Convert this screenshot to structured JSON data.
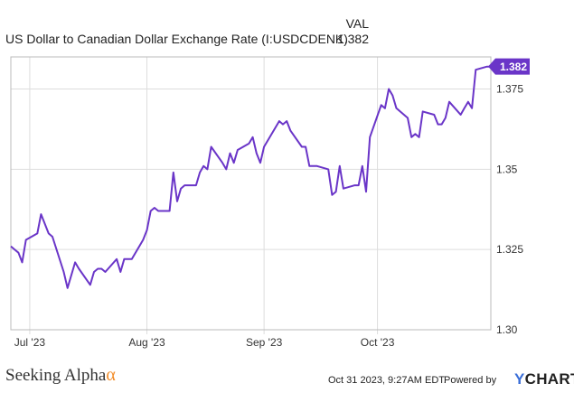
{
  "legend": {
    "header": "VAL",
    "series_name": "US Dollar to Canadian Dollar Exchange Rate (I:USDCDENK)",
    "series_value": "1.382"
  },
  "colors": {
    "series": "#6a35c8",
    "grid": "#dddddd",
    "axis": "#bbbbbb"
  },
  "chart_data": {
    "type": "line",
    "title": "",
    "xlabel": "",
    "ylabel": "",
    "ylim": [
      1.3,
      1.385
    ],
    "yticks": [
      1.3,
      1.325,
      1.35,
      1.375
    ],
    "ytick_labels": [
      "1.30",
      "1.325",
      "1.35",
      "1.375"
    ],
    "x_range": [
      "2023-06-26",
      "2023-10-31"
    ],
    "x_ticks": [
      {
        "date": "2023-07-01",
        "label": "Jul '23"
      },
      {
        "date": "2023-08-01",
        "label": "Aug '23"
      },
      {
        "date": "2023-09-01",
        "label": "Sep '23"
      },
      {
        "date": "2023-10-01",
        "label": "Oct '23"
      }
    ],
    "last_value_label": "1.382",
    "series": [
      {
        "x": [
          "2023-06-26",
          "2023-06-27",
          "2023-06-28",
          "2023-06-29",
          "2023-06-30",
          "2023-07-03",
          "2023-07-04",
          "2023-07-05",
          "2023-07-06",
          "2023-07-07",
          "2023-07-10",
          "2023-07-11",
          "2023-07-12",
          "2023-07-13",
          "2023-07-14",
          "2023-07-17",
          "2023-07-18",
          "2023-07-19",
          "2023-07-20",
          "2023-07-21",
          "2023-07-24",
          "2023-07-25",
          "2023-07-26",
          "2023-07-27",
          "2023-07-28",
          "2023-07-31",
          "2023-08-01",
          "2023-08-02",
          "2023-08-03",
          "2023-08-04",
          "2023-08-07",
          "2023-08-08",
          "2023-08-09",
          "2023-08-10",
          "2023-08-11",
          "2023-08-14",
          "2023-08-15",
          "2023-08-16",
          "2023-08-17",
          "2023-08-18",
          "2023-08-21",
          "2023-08-22",
          "2023-08-23",
          "2023-08-24",
          "2023-08-25",
          "2023-08-28",
          "2023-08-29",
          "2023-08-30",
          "2023-08-31",
          "2023-09-01",
          "2023-09-05",
          "2023-09-06",
          "2023-09-07",
          "2023-09-08",
          "2023-09-11",
          "2023-09-12",
          "2023-09-13",
          "2023-09-14",
          "2023-09-15",
          "2023-09-18",
          "2023-09-19",
          "2023-09-20",
          "2023-09-21",
          "2023-09-22",
          "2023-09-25",
          "2023-09-26",
          "2023-09-27",
          "2023-09-28",
          "2023-09-29",
          "2023-10-02",
          "2023-10-03",
          "2023-10-04",
          "2023-10-05",
          "2023-10-06",
          "2023-10-09",
          "2023-10-10",
          "2023-10-11",
          "2023-10-12",
          "2023-10-13",
          "2023-10-16",
          "2023-10-17",
          "2023-10-18",
          "2023-10-19",
          "2023-10-20",
          "2023-10-23",
          "2023-10-24",
          "2023-10-25",
          "2023-10-26",
          "2023-10-27",
          "2023-10-30",
          "2023-10-31"
        ],
        "y": [
          1.326,
          1.325,
          1.324,
          1.321,
          1.328,
          1.33,
          1.336,
          1.333,
          1.33,
          1.329,
          1.318,
          1.313,
          1.317,
          1.321,
          1.319,
          1.314,
          1.318,
          1.319,
          1.319,
          1.318,
          1.322,
          1.318,
          1.322,
          1.322,
          1.322,
          1.328,
          1.331,
          1.337,
          1.338,
          1.337,
          1.337,
          1.349,
          1.34,
          1.344,
          1.345,
          1.345,
          1.349,
          1.351,
          1.35,
          1.357,
          1.352,
          1.35,
          1.355,
          1.352,
          1.356,
          1.358,
          1.36,
          1.355,
          1.352,
          1.357,
          1.365,
          1.364,
          1.365,
          1.362,
          1.357,
          1.357,
          1.351,
          1.351,
          1.351,
          1.35,
          1.342,
          1.343,
          1.351,
          1.344,
          1.345,
          1.345,
          1.351,
          1.343,
          1.36,
          1.37,
          1.369,
          1.375,
          1.373,
          1.369,
          1.366,
          1.36,
          1.361,
          1.36,
          1.368,
          1.367,
          1.364,
          1.364,
          1.366,
          1.371,
          1.367,
          1.369,
          1.371,
          1.369,
          1.381,
          1.382,
          1.382
        ]
      }
    ]
  },
  "footer": {
    "brand_text": "Seeking Alpha",
    "brand_symbol": "α",
    "timestamp": "Oct 31 2023, 9:27AM EDT.",
    "powered_by": "Powered by",
    "ycharts_y": "Y",
    "ycharts_rest": "CHARTS"
  }
}
